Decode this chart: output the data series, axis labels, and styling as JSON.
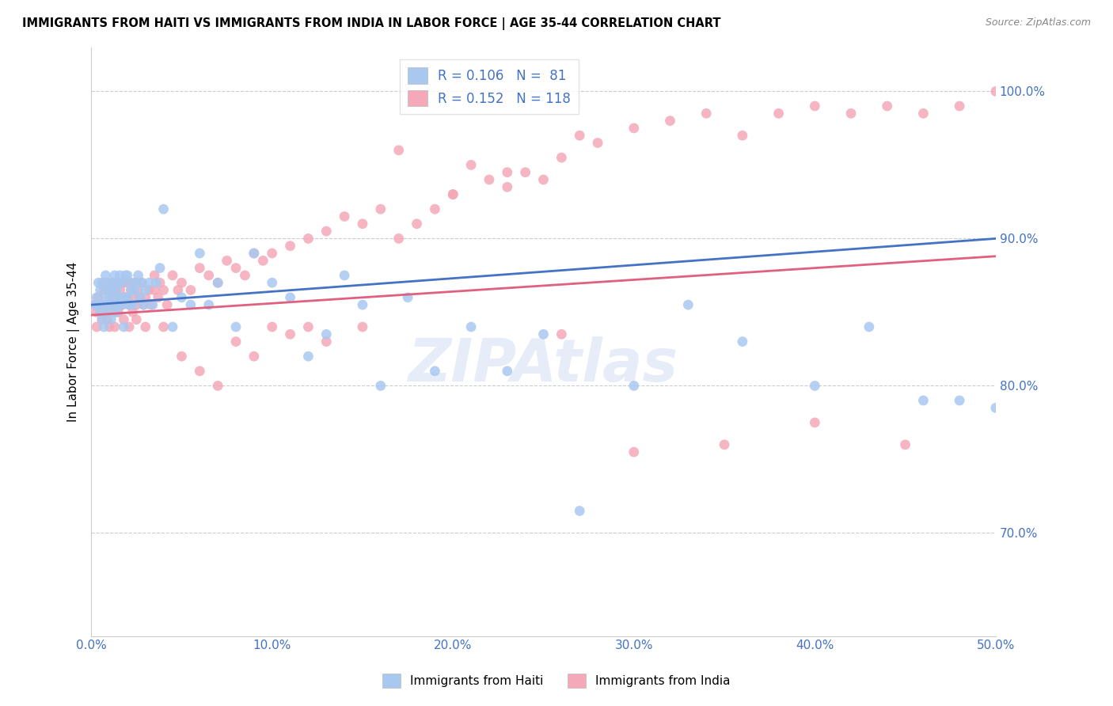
{
  "title": "IMMIGRANTS FROM HAITI VS IMMIGRANTS FROM INDIA IN LABOR FORCE | AGE 35-44 CORRELATION CHART",
  "source": "Source: ZipAtlas.com",
  "xlabel": "",
  "ylabel": "In Labor Force | Age 35-44",
  "xlim": [
    0.0,
    0.5
  ],
  "ylim": [
    0.63,
    1.03
  ],
  "xticks": [
    0.0,
    0.1,
    0.2,
    0.3,
    0.4,
    0.5
  ],
  "xticklabels": [
    "0.0%",
    "10.0%",
    "20.0%",
    "30.0%",
    "40.0%",
    "50.0%"
  ],
  "yticks_right": [
    0.7,
    0.8,
    0.9,
    1.0
  ],
  "yticklabels_right": [
    "70.0%",
    "80.0%",
    "90.0%",
    "100.0%"
  ],
  "haiti_color": "#a8c8f0",
  "india_color": "#f4a8b8",
  "haiti_line_color": "#4472c4",
  "india_line_color": "#e06080",
  "haiti_R": 0.106,
  "haiti_N": 81,
  "india_R": 0.152,
  "india_N": 118,
  "legend_label_haiti": "Immigrants from Haiti",
  "legend_label_india": "Immigrants from India",
  "watermark": "ZIPAtlas",
  "background_color": "#ffffff",
  "grid_color": "#cccccc",
  "axis_label_color": "#4472c4",
  "haiti_scatter_x": [
    0.002,
    0.003,
    0.004,
    0.004,
    0.005,
    0.005,
    0.006,
    0.006,
    0.007,
    0.007,
    0.008,
    0.008,
    0.009,
    0.009,
    0.01,
    0.01,
    0.01,
    0.011,
    0.011,
    0.012,
    0.012,
    0.013,
    0.013,
    0.014,
    0.014,
    0.015,
    0.015,
    0.016,
    0.016,
    0.017,
    0.017,
    0.018,
    0.018,
    0.019,
    0.02,
    0.02,
    0.021,
    0.022,
    0.022,
    0.023,
    0.024,
    0.025,
    0.026,
    0.027,
    0.028,
    0.029,
    0.03,
    0.032,
    0.034,
    0.036,
    0.038,
    0.04,
    0.045,
    0.05,
    0.055,
    0.06,
    0.065,
    0.07,
    0.08,
    0.09,
    0.1,
    0.11,
    0.12,
    0.13,
    0.14,
    0.15,
    0.16,
    0.175,
    0.19,
    0.21,
    0.23,
    0.25,
    0.27,
    0.3,
    0.33,
    0.36,
    0.4,
    0.43,
    0.46,
    0.48,
    0.5
  ],
  "haiti_scatter_y": [
    0.855,
    0.86,
    0.855,
    0.87,
    0.85,
    0.865,
    0.845,
    0.87,
    0.855,
    0.84,
    0.86,
    0.875,
    0.85,
    0.865,
    0.86,
    0.855,
    0.87,
    0.845,
    0.865,
    0.855,
    0.87,
    0.86,
    0.875,
    0.85,
    0.865,
    0.87,
    0.855,
    0.86,
    0.875,
    0.855,
    0.87,
    0.86,
    0.84,
    0.875,
    0.86,
    0.875,
    0.855,
    0.865,
    0.87,
    0.855,
    0.865,
    0.87,
    0.875,
    0.86,
    0.87,
    0.855,
    0.865,
    0.87,
    0.855,
    0.87,
    0.88,
    0.92,
    0.84,
    0.86,
    0.855,
    0.89,
    0.855,
    0.87,
    0.84,
    0.89,
    0.87,
    0.86,
    0.82,
    0.835,
    0.875,
    0.855,
    0.8,
    0.86,
    0.81,
    0.84,
    0.81,
    0.835,
    0.715,
    0.8,
    0.855,
    0.83,
    0.8,
    0.84,
    0.79,
    0.79,
    0.785
  ],
  "india_scatter_x": [
    0.002,
    0.003,
    0.004,
    0.005,
    0.006,
    0.007,
    0.008,
    0.008,
    0.009,
    0.01,
    0.01,
    0.011,
    0.012,
    0.012,
    0.013,
    0.013,
    0.014,
    0.015,
    0.015,
    0.016,
    0.016,
    0.017,
    0.018,
    0.018,
    0.019,
    0.02,
    0.021,
    0.022,
    0.023,
    0.024,
    0.025,
    0.026,
    0.027,
    0.028,
    0.029,
    0.03,
    0.032,
    0.033,
    0.035,
    0.037,
    0.038,
    0.04,
    0.042,
    0.045,
    0.048,
    0.05,
    0.055,
    0.06,
    0.065,
    0.07,
    0.075,
    0.08,
    0.085,
    0.09,
    0.095,
    0.1,
    0.11,
    0.12,
    0.13,
    0.14,
    0.15,
    0.16,
    0.17,
    0.18,
    0.19,
    0.2,
    0.21,
    0.22,
    0.23,
    0.24,
    0.25,
    0.26,
    0.27,
    0.28,
    0.3,
    0.32,
    0.34,
    0.36,
    0.38,
    0.4,
    0.42,
    0.44,
    0.46,
    0.48,
    0.5,
    0.003,
    0.005,
    0.007,
    0.009,
    0.011,
    0.013,
    0.015,
    0.017,
    0.019,
    0.021,
    0.023,
    0.025,
    0.03,
    0.035,
    0.04,
    0.05,
    0.06,
    0.07,
    0.08,
    0.09,
    0.1,
    0.11,
    0.12,
    0.13,
    0.15,
    0.17,
    0.2,
    0.23,
    0.26,
    0.3,
    0.35,
    0.4,
    0.45
  ],
  "india_scatter_y": [
    0.855,
    0.85,
    0.86,
    0.855,
    0.845,
    0.865,
    0.85,
    0.87,
    0.855,
    0.84,
    0.865,
    0.855,
    0.86,
    0.87,
    0.85,
    0.865,
    0.855,
    0.87,
    0.85,
    0.865,
    0.86,
    0.855,
    0.87,
    0.845,
    0.86,
    0.87,
    0.855,
    0.865,
    0.85,
    0.87,
    0.855,
    0.865,
    0.86,
    0.87,
    0.855,
    0.86,
    0.865,
    0.855,
    0.875,
    0.86,
    0.87,
    0.865,
    0.855,
    0.875,
    0.865,
    0.87,
    0.865,
    0.88,
    0.875,
    0.87,
    0.885,
    0.88,
    0.875,
    0.89,
    0.885,
    0.89,
    0.895,
    0.9,
    0.905,
    0.915,
    0.91,
    0.92,
    0.9,
    0.91,
    0.92,
    0.93,
    0.95,
    0.94,
    0.935,
    0.945,
    0.94,
    0.955,
    0.97,
    0.965,
    0.975,
    0.98,
    0.985,
    0.97,
    0.985,
    0.99,
    0.985,
    0.99,
    0.985,
    0.99,
    1.0,
    0.84,
    0.85,
    0.855,
    0.845,
    0.855,
    0.84,
    0.87,
    0.855,
    0.86,
    0.84,
    0.86,
    0.845,
    0.84,
    0.865,
    0.84,
    0.82,
    0.81,
    0.8,
    0.83,
    0.82,
    0.84,
    0.835,
    0.84,
    0.83,
    0.84,
    0.96,
    0.93,
    0.945,
    0.835,
    0.755,
    0.76,
    0.775,
    0.76
  ]
}
